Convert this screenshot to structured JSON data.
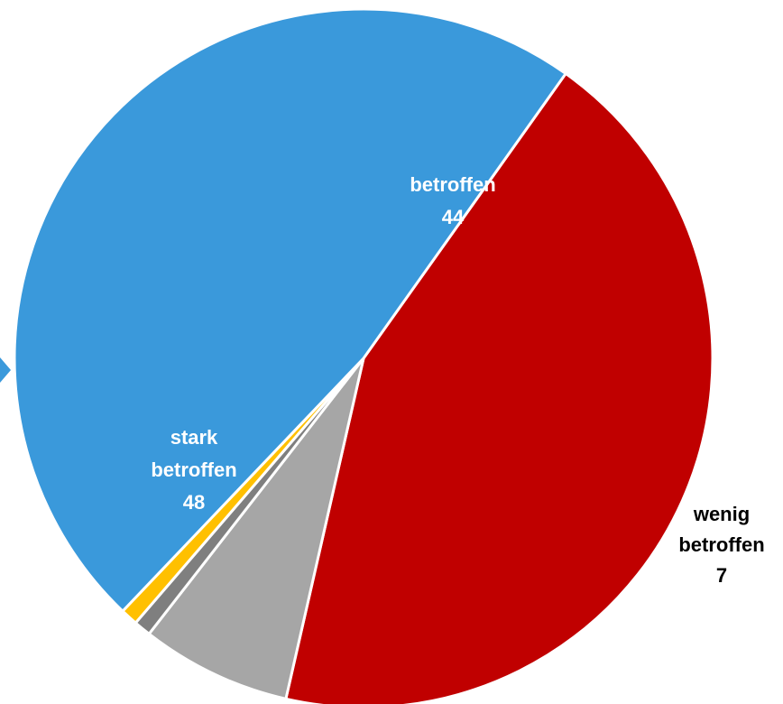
{
  "chart_data": {
    "type": "pie",
    "title": "",
    "slices": [
      {
        "label": [
          "betroffen"
        ],
        "value": 44,
        "value_label": "44",
        "color": "#C00000"
      },
      {
        "label": [
          "wenig",
          "betroffen"
        ],
        "value": 7,
        "value_label": "7",
        "color": "#A6A6A6"
      },
      {
        "label": [],
        "value": 0.8,
        "value_label": "",
        "color": "#7F7F7F"
      },
      {
        "label": [],
        "value": 0.8,
        "value_label": "",
        "color": "#FFC000"
      },
      {
        "label": [
          "stark",
          "betroffen"
        ],
        "value": 48,
        "value_label": "48",
        "color": "#3A99DB"
      }
    ],
    "label_colors": {
      "inside": "#FFFFFF",
      "outside": "#000000"
    },
    "slice_border_color": "#FFFFFF"
  }
}
